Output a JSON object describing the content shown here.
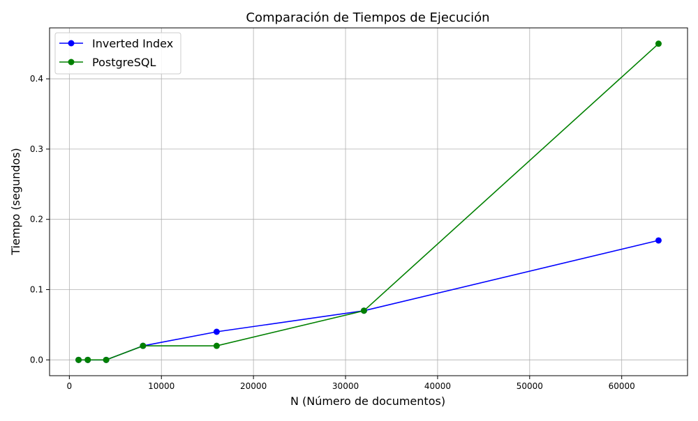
{
  "chart_data": {
    "type": "line",
    "title": "Comparación de Tiempos de Ejecución",
    "xlabel": "N (Número de documentos)",
    "ylabel": "Tiempo (segundos)",
    "xlim": [
      -2150,
      67150
    ],
    "ylim": [
      -0.0225,
      0.4725
    ],
    "xticks": [
      0,
      10000,
      20000,
      30000,
      40000,
      50000,
      60000
    ],
    "xtick_labels": [
      "0",
      "10000",
      "20000",
      "30000",
      "40000",
      "50000",
      "60000"
    ],
    "yticks": [
      0.0,
      0.1,
      0.2,
      0.3,
      0.4
    ],
    "ytick_labels": [
      "0.0",
      "0.1",
      "0.2",
      "0.3",
      "0.4"
    ],
    "grid": true,
    "legend": "top-left",
    "x": [
      1000,
      2000,
      4000,
      8000,
      16000,
      32000,
      64000
    ],
    "series": [
      {
        "name": "Inverted Index",
        "color": "#0000ff",
        "marker": "circle",
        "values": [
          0.0,
          0.0,
          0.0,
          0.02,
          0.04,
          0.07,
          0.17
        ]
      },
      {
        "name": "PostgreSQL",
        "color": "#008000",
        "marker": "circle",
        "values": [
          0.0,
          0.0,
          0.0,
          0.02,
          0.02,
          0.07,
          0.45
        ]
      }
    ]
  }
}
